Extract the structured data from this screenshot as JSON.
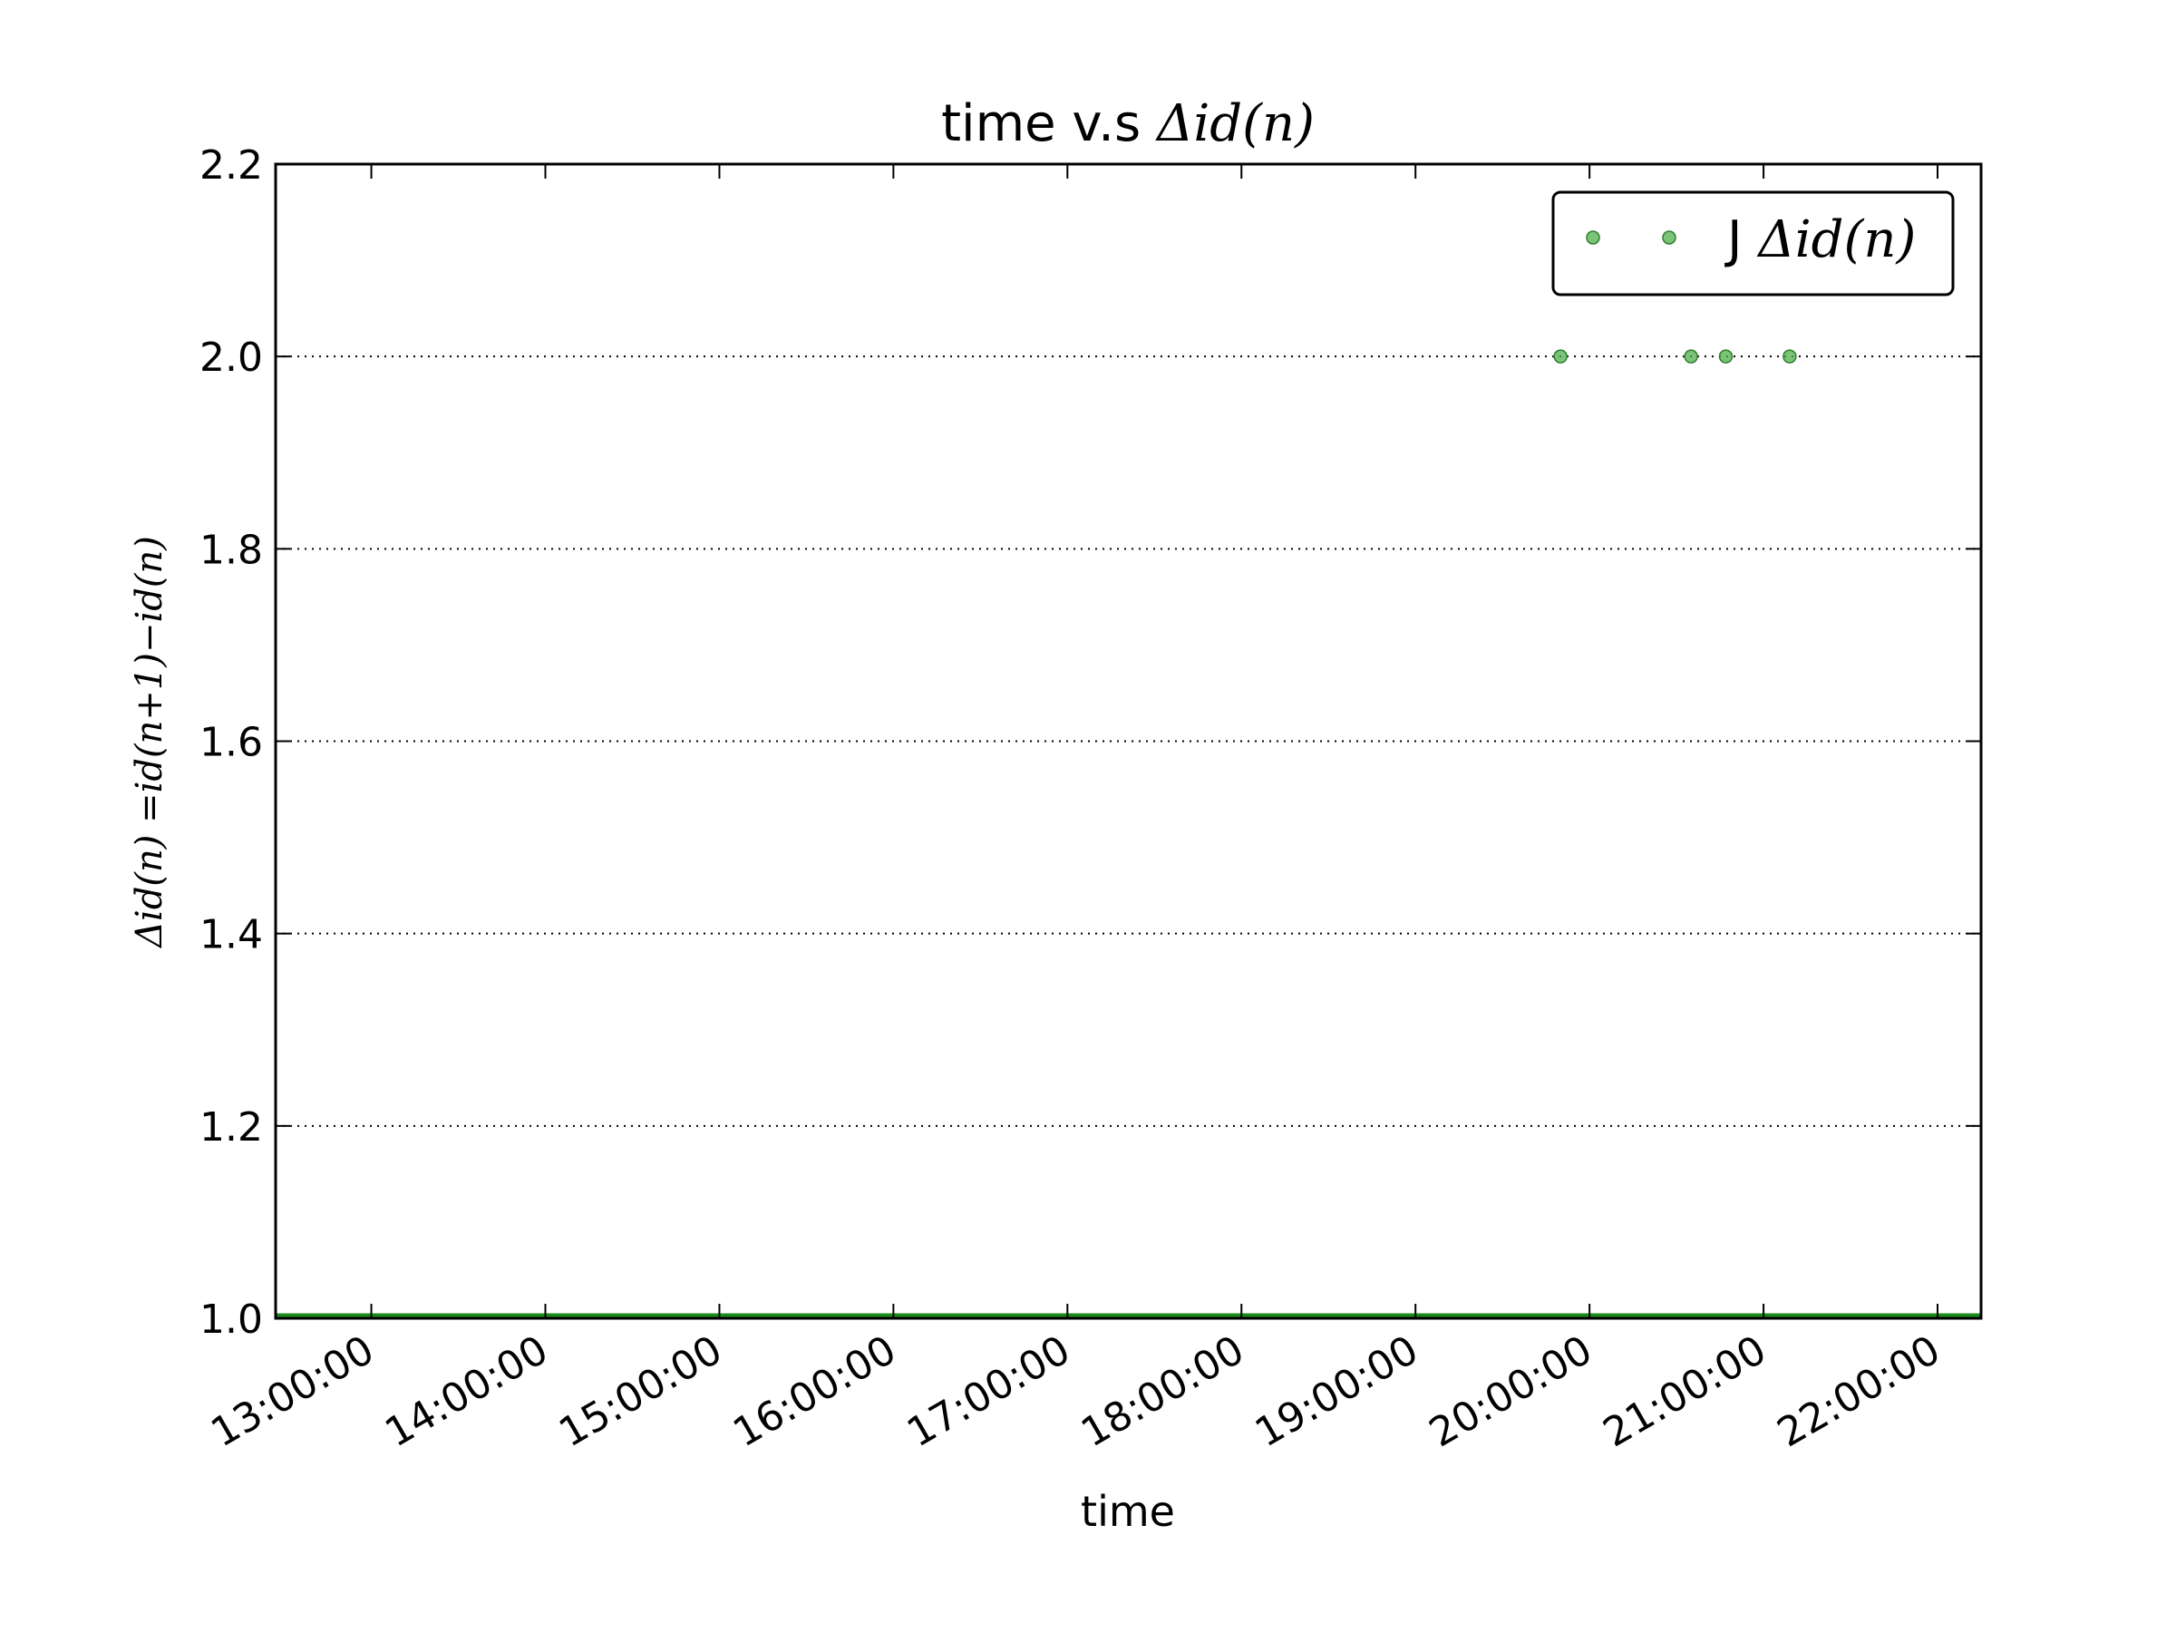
{
  "colors": {
    "marker": "#4daf4a",
    "marker_edge": "#2e7d2e",
    "baseline": "#1b8a1b",
    "axis": "#000000",
    "grid": "#000000"
  },
  "chart_data": {
    "type": "scatter",
    "title": "time v.s Δid(n)",
    "title_prefix": "time v.s ",
    "title_math": "Δid(n)",
    "xlabel": "time",
    "ylabel": "Δid(n) =id(n+1)−id(n)",
    "xlim": [
      "12:27:00",
      "22:15:00"
    ],
    "ylim": [
      1.0,
      2.2
    ],
    "x_ticks": [
      "13:00:00",
      "14:00:00",
      "15:00:00",
      "16:00:00",
      "17:00:00",
      "18:00:00",
      "19:00:00",
      "20:00:00",
      "21:00:00",
      "22:00:00"
    ],
    "y_ticks": [
      "1.0",
      "1.2",
      "1.4",
      "1.6",
      "1.8",
      "2.0",
      "2.2"
    ],
    "grid": "y-dotted",
    "legend_position": "top-right",
    "series": [
      {
        "name": "J Δid(n)",
        "legend_prefix": "J ",
        "legend_math": "Δid(n)",
        "x": [
          "19:50:00",
          "20:35:00",
          "20:47:00",
          "21:09:00"
        ],
        "y": [
          2.0,
          2.0,
          2.0,
          2.0
        ]
      }
    ],
    "baseline": {
      "y": 1.0,
      "from": "12:27:00",
      "to": "22:15:00"
    }
  }
}
